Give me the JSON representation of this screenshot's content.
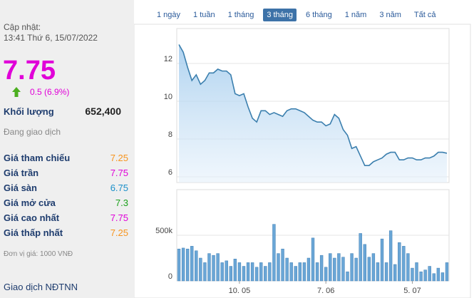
{
  "sidebar": {
    "update_label": "Cập nhật:",
    "update_time": "13:41 Thứ 6, 15/07/2022",
    "price": "7.75",
    "price_color": "#e000d8",
    "change": "0.5 (6.9%)",
    "volume_label": "Khối lượng",
    "volume": "652,400",
    "status": "Đang giao dịch",
    "rows": [
      {
        "label": "Giá tham chiếu",
        "value": "7.25",
        "color": "#f7941d"
      },
      {
        "label": "Giá trần",
        "value": "7.75",
        "color": "#e000d8"
      },
      {
        "label": "Giá sàn",
        "value": "6.75",
        "color": "#1a8fc9"
      },
      {
        "label": "Giá mở cửa",
        "value": "7.3",
        "color": "#1aa01a"
      },
      {
        "label": "Giá cao nhất",
        "value": "7.75",
        "color": "#e000d8"
      },
      {
        "label": "Giá thấp nhất",
        "value": "7.25",
        "color": "#f7941d"
      }
    ],
    "unit_note": "Đơn vị giá: 1000 VNĐ",
    "foreign_trade": "Giao dịch NĐTNN"
  },
  "tabs": {
    "items": [
      "1 ngày",
      "1 tuần",
      "1 tháng",
      "3 tháng",
      "6 tháng",
      "1 năm",
      "3 năm",
      "Tất cả"
    ],
    "active": 3
  },
  "chart_data": [
    {
      "type": "line",
      "color": "#3b7fae",
      "grid": true,
      "values": [
        13.0,
        12.6,
        11.8,
        11.1,
        11.4,
        10.9,
        11.1,
        11.5,
        11.5,
        11.7,
        11.6,
        11.6,
        11.4,
        10.4,
        10.3,
        10.4,
        9.7,
        9.1,
        8.9,
        9.5,
        9.5,
        9.3,
        9.4,
        9.3,
        9.2,
        9.5,
        9.6,
        9.6,
        9.5,
        9.4,
        9.2,
        9.0,
        8.9,
        8.9,
        8.7,
        8.8,
        9.3,
        9.1,
        8.5,
        8.2,
        7.5,
        7.6,
        7.1,
        6.6,
        6.6,
        6.8,
        6.9,
        7.0,
        7.2,
        7.3,
        7.3,
        6.9,
        6.9,
        7.0,
        7.0,
        6.9,
        6.9,
        7.0,
        7.0,
        7.1,
        7.3,
        7.3,
        7.25
      ],
      "ylim": [
        5.7,
        13.85
      ],
      "yticks": [
        6,
        8,
        10,
        12
      ]
    },
    {
      "type": "bar",
      "color": "#6aa6d6",
      "grid": true,
      "categories": [
        null,
        null,
        null,
        null,
        null,
        null,
        null,
        null,
        null,
        null,
        null,
        null,
        null,
        null,
        "10. 05",
        null,
        null,
        null,
        null,
        null,
        null,
        null,
        null,
        null,
        null,
        null,
        null,
        null,
        null,
        null,
        null,
        null,
        null,
        null,
        "7. 06",
        null,
        null,
        null,
        null,
        null,
        null,
        null,
        null,
        null,
        null,
        null,
        null,
        null,
        null,
        null,
        null,
        null,
        null,
        null,
        "5. 07",
        null,
        null,
        null,
        null,
        null,
        null,
        null,
        null
      ],
      "values": [
        350000,
        360000,
        350000,
        380000,
        330000,
        250000,
        200000,
        300000,
        280000,
        300000,
        200000,
        220000,
        160000,
        240000,
        200000,
        160000,
        200000,
        200000,
        150000,
        200000,
        160000,
        200000,
        620000,
        300000,
        350000,
        250000,
        200000,
        160000,
        200000,
        200000,
        250000,
        470000,
        200000,
        280000,
        150000,
        300000,
        250000,
        300000,
        260000,
        100000,
        300000,
        250000,
        520000,
        400000,
        260000,
        300000,
        200000,
        460000,
        200000,
        550000,
        180000,
        420000,
        380000,
        300000,
        140000,
        200000,
        100000,
        120000,
        160000,
        80000,
        140000,
        90000,
        200000
      ],
      "ylim": [
        0,
        1000000
      ],
      "yticks": [
        0,
        {
          "value": 500000,
          "label": "500k"
        }
      ]
    }
  ]
}
